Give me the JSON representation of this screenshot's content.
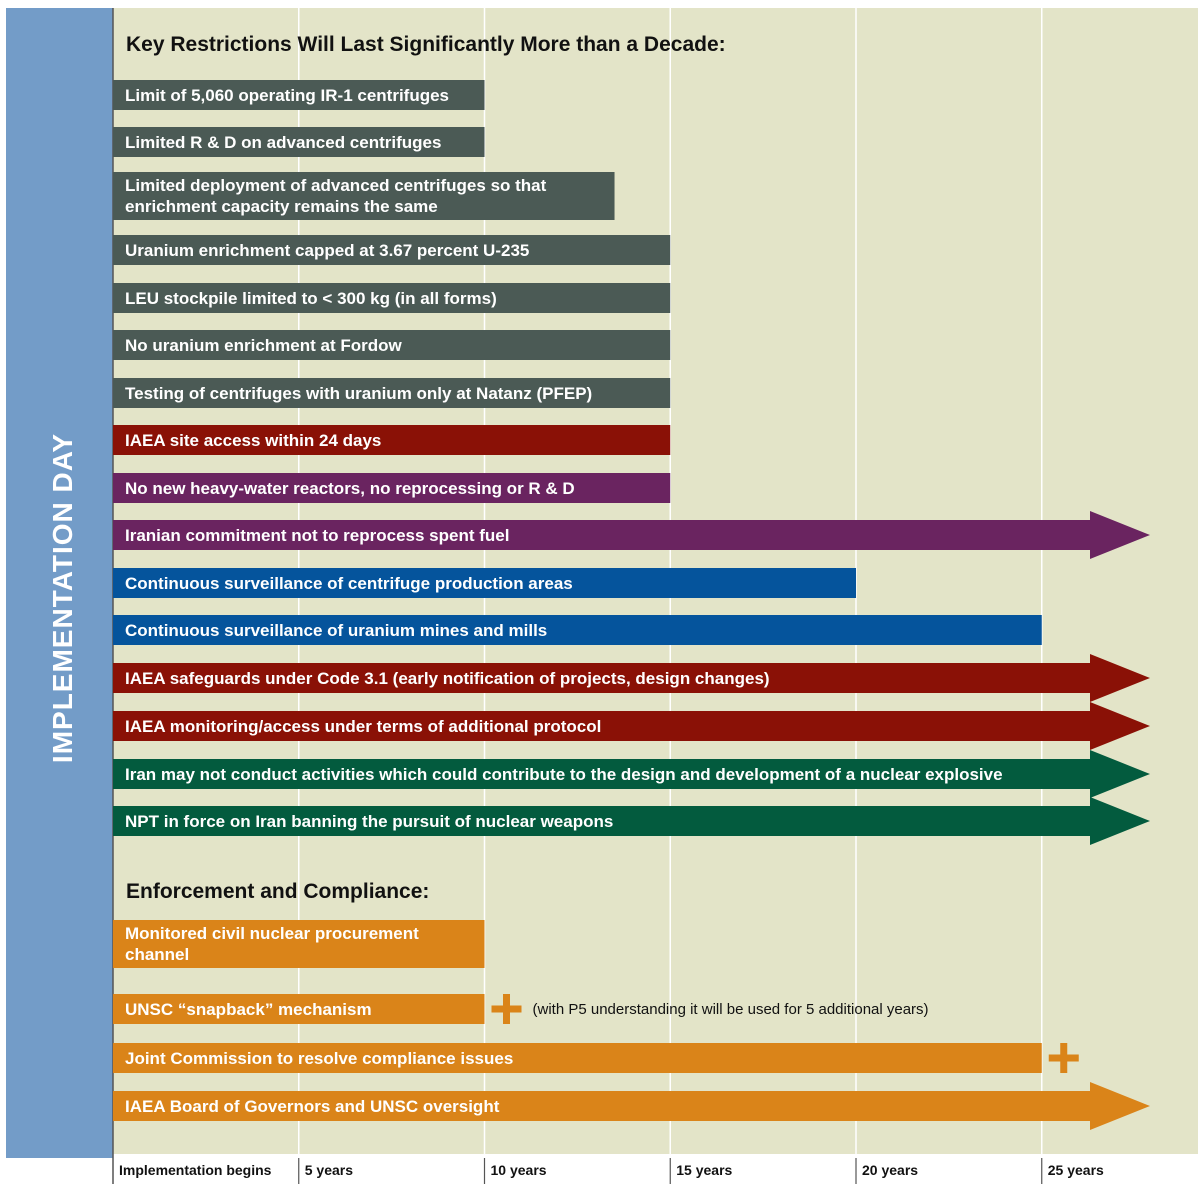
{
  "chart_data": {
    "type": "bar",
    "orientation": "horizontal",
    "vertical_label": "IMPLEMENTATION DAY",
    "x_unit": "years",
    "xlim": [
      0,
      28
    ],
    "x_ticks": [
      {
        "value": 0,
        "label": "Implementation begins"
      },
      {
        "value": 5,
        "label": "5 years"
      },
      {
        "value": 10,
        "label": "10 years"
      },
      {
        "value": 15,
        "label": "15 years"
      },
      {
        "value": 20,
        "label": "20 years"
      },
      {
        "value": 25,
        "label": "25 years"
      }
    ],
    "grid": true,
    "colors": {
      "background": "#e3e4c8",
      "side_band": "#739cc8",
      "grid": "#ffffff",
      "gray": "#4b5a55",
      "red": "#8a1106",
      "purple": "#6a2460",
      "blue": "#05549c",
      "green": "#035b3e",
      "orange": "#da8419"
    },
    "sections": [
      {
        "title": "Key Restrictions Will Last Significantly More than a Decade:",
        "items": [
          {
            "label": [
              "Limit of 5,060 operating IR-1 centrifuges"
            ],
            "end": 10,
            "color": "gray",
            "arrow": false
          },
          {
            "label": [
              "Limited R & D on advanced centrifuges"
            ],
            "end": 10,
            "color": "gray",
            "arrow": false
          },
          {
            "label": [
              "Limited deployment of advanced centrifuges so that",
              "enrichment capacity remains the same"
            ],
            "end": 13.5,
            "color": "gray",
            "arrow": false
          },
          {
            "label": [
              "Uranium enrichment capped at 3.67 percent U-235"
            ],
            "end": 15,
            "color": "gray",
            "arrow": false
          },
          {
            "label": [
              "LEU stockpile limited to < 300 kg (in all forms)"
            ],
            "end": 15,
            "color": "gray",
            "arrow": false
          },
          {
            "label": [
              "No uranium enrichment at Fordow"
            ],
            "end": 15,
            "color": "gray",
            "arrow": false
          },
          {
            "label": [
              "Testing of centrifuges with uranium only at Natanz (PFEP)"
            ],
            "end": 15,
            "color": "gray",
            "arrow": false
          },
          {
            "label": [
              "IAEA site access within 24 days"
            ],
            "end": 15,
            "color": "red",
            "arrow": false
          },
          {
            "label": [
              "No new heavy-water reactors, no reprocessing or R & D"
            ],
            "end": 15,
            "color": "purple",
            "arrow": false
          },
          {
            "label": [
              "Iranian commitment not to reprocess spent fuel"
            ],
            "end": null,
            "color": "purple",
            "arrow": true
          },
          {
            "label": [
              "Continuous surveillance of centrifuge production areas"
            ],
            "end": 20,
            "color": "blue",
            "arrow": false
          },
          {
            "label": [
              "Continuous surveillance of uranium mines and mills"
            ],
            "end": 25,
            "color": "blue",
            "arrow": false
          },
          {
            "label": [
              "IAEA safeguards under Code 3.1 (early notification of projects, design changes)"
            ],
            "end": null,
            "color": "red",
            "arrow": true
          },
          {
            "label": [
              "IAEA monitoring/access under terms of additional protocol"
            ],
            "end": null,
            "color": "red",
            "arrow": true
          },
          {
            "label": [
              "Iran may not conduct activities which could contribute to the design and development of a nuclear explosive"
            ],
            "end": null,
            "color": "green",
            "arrow": true
          },
          {
            "label": [
              "NPT in force on Iran banning the pursuit of nuclear weapons"
            ],
            "end": null,
            "color": "green",
            "arrow": true
          }
        ]
      },
      {
        "title": "Enforcement and Compliance:",
        "items": [
          {
            "label": [
              "Monitored civil nuclear procurement",
              "channel"
            ],
            "end": 10,
            "color": "orange",
            "arrow": false
          },
          {
            "label": [
              "UNSC “snapback” mechanism"
            ],
            "end": 10,
            "color": "orange",
            "arrow": false,
            "plus": true,
            "note": "(with P5 understanding it will be used for 5 additional years)"
          },
          {
            "label": [
              "Joint Commission to resolve compliance issues"
            ],
            "end": 25,
            "color": "orange",
            "arrow": false,
            "plus": true
          },
          {
            "label": [
              "IAEA Board of Governors and UNSC oversight"
            ],
            "end": null,
            "color": "orange",
            "arrow": true
          }
        ]
      }
    ]
  }
}
